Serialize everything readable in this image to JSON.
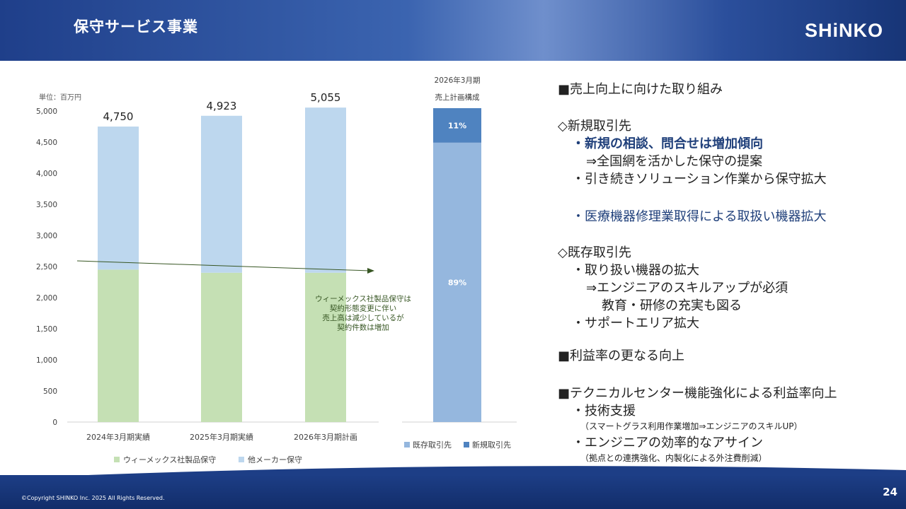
{
  "header": {
    "title": "保守サービス事業",
    "logo": "SHiNKO"
  },
  "footer": {
    "copyright": "©Copyright SHINKO Inc. 2025 All Rights Reserved.",
    "page": "24"
  },
  "colors": {
    "green": "#c5e0b4",
    "light_blue": "#bdd7ee",
    "mid_blue": "#95b7de",
    "dark_blue": "#4f83c0",
    "arrow": "#375623"
  },
  "chart_data": [
    {
      "type": "bar",
      "stacked": true,
      "unit_label": "単位：百万円",
      "categories": [
        "2024年3月期実績",
        "2025年3月期実績",
        "2026年3月期計画"
      ],
      "series": [
        {
          "name": "ウィーメックス社製品保守",
          "values": [
            2450,
            2400,
            2400
          ]
        },
        {
          "name": "他メーカー保守",
          "values": [
            2300,
            2523,
            2655
          ]
        }
      ],
      "totals": [
        "4,750",
        "4,923",
        "5,055"
      ],
      "total_values": [
        4750,
        4923,
        5055
      ],
      "ylim": [
        0,
        5000
      ],
      "yticks": [
        "0",
        "500",
        "1,000",
        "1,500",
        "2,000",
        "2,500",
        "3,000",
        "3,500",
        "4,000",
        "4,500",
        "5,000"
      ],
      "annotation": [
        "ウィーメックス社製品保守は",
        "契約形態変更に伴い",
        "売上高は減少しているが",
        "契約件数は増加"
      ],
      "legend_position": "bottom"
    },
    {
      "type": "bar",
      "stacked": true,
      "title": [
        "2026年3月期",
        "売上計画構成"
      ],
      "categories": [
        ""
      ],
      "series": [
        {
          "name": "既存取引先",
          "values": [
            89
          ],
          "label": "89%"
        },
        {
          "name": "新規取引先",
          "values": [
            11
          ],
          "label": "11%"
        }
      ],
      "ylim": [
        0,
        100
      ],
      "legend_position": "bottom"
    }
  ],
  "bullets": {
    "h1": "■売上向上に向けた取り組み",
    "new_head": "◇新規取引先",
    "new_1": "・新規の相談、問合せは増加傾向",
    "new_1b": "⇒全国網を活かした保守の提案",
    "new_2": "・引き続きソリューション作業から保守拡大",
    "new_3": "・医療機器修理業取得による取扱い機器拡大",
    "exist_head": "◇既存取引先",
    "exist_1": "・取り扱い機器の拡大",
    "exist_1b": "⇒エンジニアのスキルアップが必須",
    "exist_1c": "教育・研修の充実も図る",
    "exist_2": "・サポートエリア拡大",
    "h2": "■利益率の更なる向上",
    "h3": "■テクニカルセンター機能強化による利益率向上",
    "tech_1": "・技術支援",
    "tech_1b": "（スマートグラス利用作業増加⇒エンジニアのスキルUP）",
    "tech_2": "・エンジニアの効率的なアサイン",
    "tech_2b": "（拠点との連携強化、内製化による外注費削減）"
  }
}
